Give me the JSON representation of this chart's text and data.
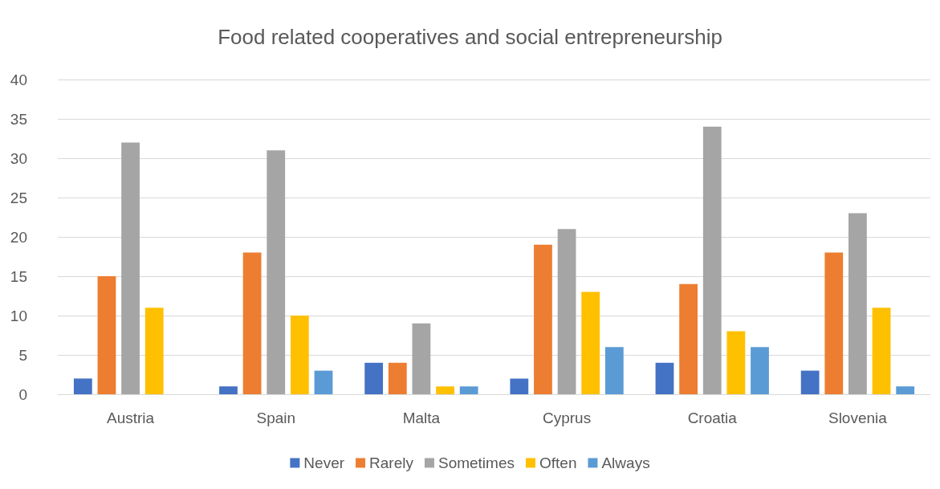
{
  "chart_data": {
    "type": "bar",
    "title": "Food related cooperatives and social entrepreneurship",
    "categories": [
      "Austria",
      "Spain",
      "Malta",
      "Cyprus",
      "Croatia",
      "Slovenia"
    ],
    "series": [
      {
        "name": "Never",
        "color": "#4472c4",
        "values": [
          2,
          1,
          4,
          2,
          4,
          3
        ]
      },
      {
        "name": "Rarely",
        "color": "#ed7d31",
        "values": [
          15,
          18,
          4,
          19,
          14,
          18
        ]
      },
      {
        "name": "Sometimes",
        "color": "#a5a5a5",
        "values": [
          32,
          31,
          9,
          21,
          34,
          23
        ]
      },
      {
        "name": "Often",
        "color": "#ffc000",
        "values": [
          11,
          10,
          1,
          13,
          8,
          11
        ]
      },
      {
        "name": "Always",
        "color": "#5b9bd5",
        "values": [
          0,
          3,
          1,
          6,
          6,
          1
        ]
      }
    ],
    "ylim": [
      0,
      40
    ],
    "yticks": [
      0,
      5,
      10,
      15,
      20,
      25,
      30,
      35,
      40
    ],
    "grid": "y",
    "legend": "bottom"
  }
}
